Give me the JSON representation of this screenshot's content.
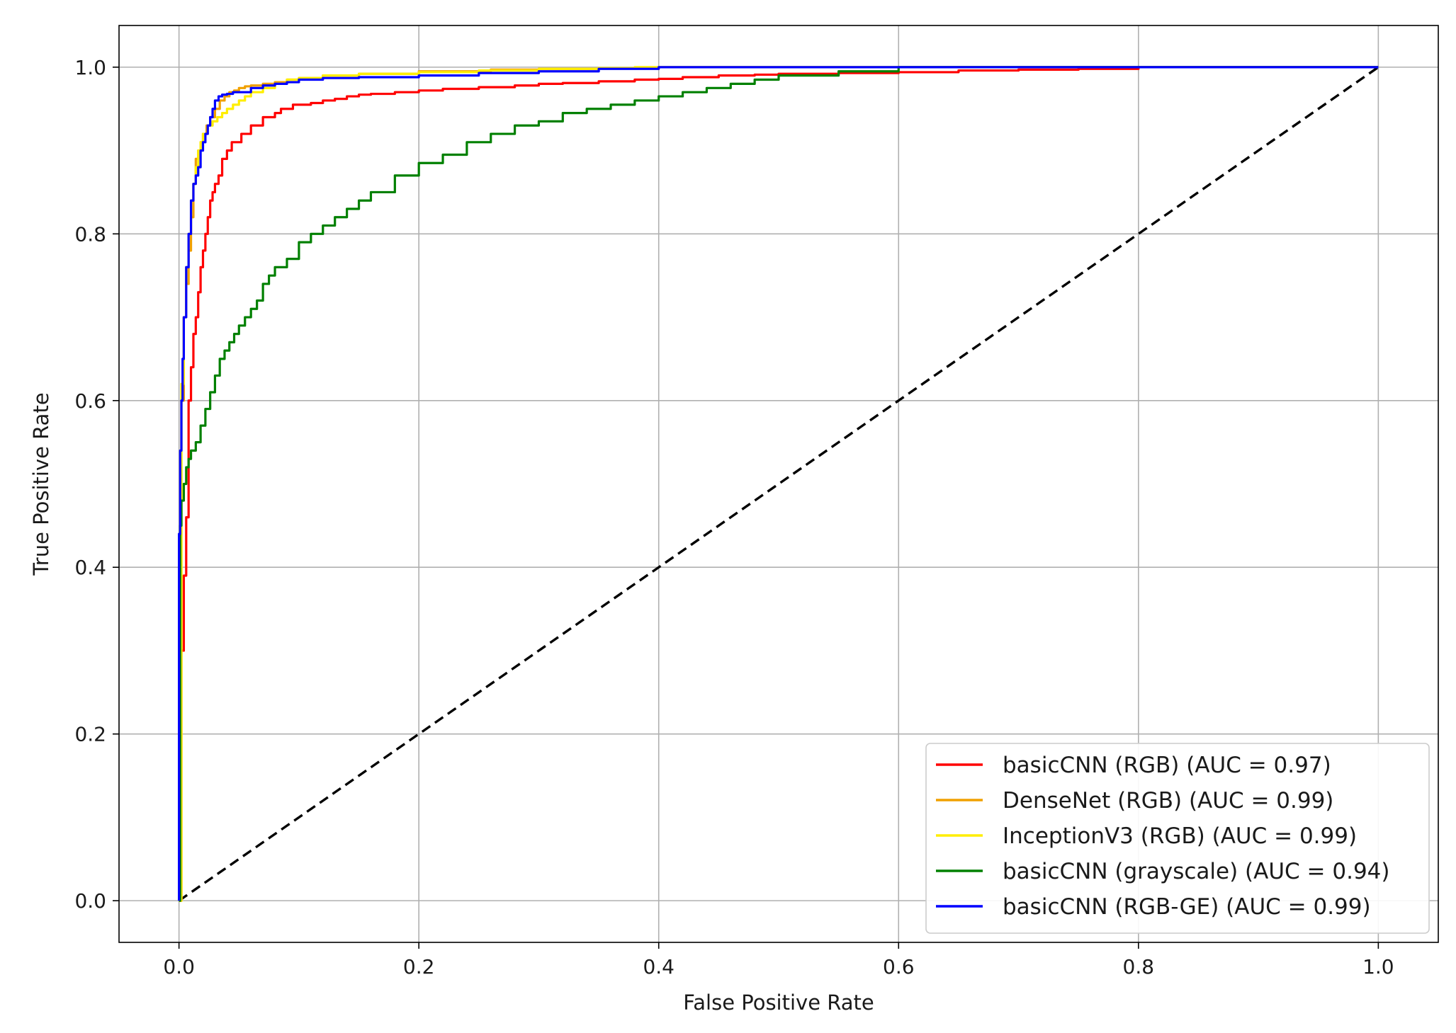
{
  "chart_data": {
    "type": "line",
    "title": "",
    "xlabel": "False Positive Rate",
    "ylabel": "True Positive Rate",
    "xlim": [
      -0.05,
      1.05
    ],
    "ylim": [
      -0.05,
      1.05
    ],
    "x_ticks": [
      0.0,
      0.2,
      0.4,
      0.6,
      0.8,
      1.0
    ],
    "y_ticks": [
      0.0,
      0.2,
      0.4,
      0.6,
      0.8,
      1.0
    ],
    "x_tick_labels": [
      "0.0",
      "0.2",
      "0.4",
      "0.6",
      "0.8",
      "1.0"
    ],
    "y_tick_labels": [
      "0.0",
      "0.2",
      "0.4",
      "0.6",
      "0.8",
      "1.0"
    ],
    "grid": true,
    "legend_position": "lower-right",
    "series": [
      {
        "name": "basicCNN (RGB) (AUC = 0.97)",
        "color": "#ff0000",
        "x": [
          0.0,
          0.002,
          0.002,
          0.004,
          0.004,
          0.006,
          0.006,
          0.008,
          0.008,
          0.01,
          0.012,
          0.014,
          0.016,
          0.018,
          0.02,
          0.022,
          0.024,
          0.026,
          0.028,
          0.03,
          0.033,
          0.036,
          0.04,
          0.044,
          0.048,
          0.052,
          0.056,
          0.06,
          0.065,
          0.07,
          0.075,
          0.08,
          0.085,
          0.09,
          0.095,
          0.1,
          0.11,
          0.12,
          0.13,
          0.14,
          0.15,
          0.16,
          0.18,
          0.2,
          0.22,
          0.25,
          0.28,
          0.3,
          0.32,
          0.35,
          0.38,
          0.4,
          0.42,
          0.45,
          0.48,
          0.5,
          0.55,
          0.6,
          0.65,
          0.7,
          0.75,
          0.8,
          0.9,
          1.0
        ],
        "y": [
          0.0,
          0.2,
          0.3,
          0.38,
          0.39,
          0.39,
          0.46,
          0.5,
          0.6,
          0.64,
          0.68,
          0.7,
          0.73,
          0.76,
          0.78,
          0.8,
          0.82,
          0.84,
          0.85,
          0.86,
          0.87,
          0.89,
          0.9,
          0.91,
          0.91,
          0.92,
          0.92,
          0.93,
          0.93,
          0.94,
          0.94,
          0.945,
          0.95,
          0.95,
          0.955,
          0.955,
          0.957,
          0.96,
          0.962,
          0.965,
          0.967,
          0.968,
          0.97,
          0.972,
          0.974,
          0.976,
          0.978,
          0.98,
          0.981,
          0.983,
          0.985,
          0.986,
          0.988,
          0.99,
          0.991,
          0.992,
          0.993,
          0.994,
          0.996,
          0.997,
          0.998,
          1.0,
          1.0,
          1.0
        ]
      },
      {
        "name": "DenseNet (RGB) (AUC = 0.99)",
        "color": "#f0a000",
        "x": [
          0.0,
          0.002,
          0.004,
          0.006,
          0.008,
          0.01,
          0.012,
          0.014,
          0.016,
          0.018,
          0.02,
          0.023,
          0.026,
          0.03,
          0.034,
          0.038,
          0.042,
          0.046,
          0.05,
          0.055,
          0.06,
          0.07,
          0.08,
          0.09,
          0.1,
          0.12,
          0.15,
          0.2,
          0.26,
          0.3,
          0.35,
          0.4,
          0.5,
          0.6,
          0.8,
          1.0
        ],
        "y": [
          0.0,
          0.6,
          0.7,
          0.74,
          0.78,
          0.82,
          0.86,
          0.89,
          0.9,
          0.91,
          0.92,
          0.93,
          0.94,
          0.95,
          0.96,
          0.965,
          0.97,
          0.972,
          0.975,
          0.977,
          0.978,
          0.98,
          0.982,
          0.985,
          0.987,
          0.99,
          0.992,
          0.995,
          0.997,
          0.998,
          0.999,
          1.0,
          1.0,
          1.0,
          1.0,
          1.0
        ]
      },
      {
        "name": "InceptionV3 (RGB) (AUC = 0.99)",
        "color": "#ffee00",
        "x": [
          0.0,
          0.002,
          0.004,
          0.006,
          0.008,
          0.01,
          0.012,
          0.014,
          0.016,
          0.018,
          0.02,
          0.024,
          0.028,
          0.032,
          0.036,
          0.04,
          0.045,
          0.05,
          0.055,
          0.06,
          0.07,
          0.08,
          0.09,
          0.1,
          0.12,
          0.15,
          0.2,
          0.25,
          0.3,
          0.35,
          0.38,
          0.4,
          0.5,
          0.6,
          0.8,
          1.0
        ],
        "y": [
          0.0,
          0.62,
          0.7,
          0.76,
          0.8,
          0.84,
          0.86,
          0.88,
          0.9,
          0.91,
          0.92,
          0.93,
          0.935,
          0.94,
          0.945,
          0.95,
          0.955,
          0.96,
          0.965,
          0.97,
          0.975,
          0.98,
          0.985,
          0.987,
          0.99,
          0.992,
          0.994,
          0.996,
          0.998,
          0.999,
          1.0,
          1.0,
          1.0,
          1.0,
          1.0,
          1.0
        ]
      },
      {
        "name": "basicCNN (grayscale) (AUC = 0.94)",
        "color": "#008000",
        "x": [
          0.0,
          0.001,
          0.002,
          0.004,
          0.006,
          0.008,
          0.01,
          0.014,
          0.018,
          0.022,
          0.026,
          0.03,
          0.034,
          0.038,
          0.042,
          0.046,
          0.05,
          0.055,
          0.06,
          0.065,
          0.07,
          0.075,
          0.08,
          0.09,
          0.1,
          0.11,
          0.12,
          0.13,
          0.14,
          0.15,
          0.16,
          0.18,
          0.2,
          0.22,
          0.24,
          0.26,
          0.28,
          0.3,
          0.32,
          0.34,
          0.36,
          0.38,
          0.4,
          0.42,
          0.44,
          0.46,
          0.48,
          0.5,
          0.55,
          0.6,
          0.7,
          0.8,
          0.9,
          1.0
        ],
        "y": [
          0.0,
          0.45,
          0.48,
          0.5,
          0.52,
          0.53,
          0.54,
          0.55,
          0.57,
          0.59,
          0.61,
          0.63,
          0.65,
          0.66,
          0.67,
          0.68,
          0.69,
          0.7,
          0.71,
          0.72,
          0.74,
          0.75,
          0.76,
          0.77,
          0.79,
          0.8,
          0.81,
          0.82,
          0.83,
          0.84,
          0.85,
          0.87,
          0.885,
          0.895,
          0.91,
          0.92,
          0.93,
          0.935,
          0.945,
          0.95,
          0.955,
          0.96,
          0.965,
          0.97,
          0.975,
          0.98,
          0.985,
          0.99,
          0.995,
          1.0,
          1.0,
          1.0,
          1.0,
          1.0
        ]
      },
      {
        "name": "basicCNN (RGB-GE) (AUC = 0.99)",
        "color": "#0000ff",
        "x": [
          0.0,
          0.0,
          0.001,
          0.002,
          0.003,
          0.004,
          0.006,
          0.008,
          0.01,
          0.012,
          0.014,
          0.016,
          0.018,
          0.02,
          0.022,
          0.024,
          0.026,
          0.028,
          0.03,
          0.033,
          0.036,
          0.04,
          0.045,
          0.05,
          0.06,
          0.07,
          0.08,
          0.09,
          0.1,
          0.12,
          0.15,
          0.2,
          0.25,
          0.3,
          0.35,
          0.4,
          0.5,
          0.6,
          0.8,
          1.0
        ],
        "y": [
          0.0,
          0.44,
          0.54,
          0.6,
          0.65,
          0.7,
          0.76,
          0.8,
          0.84,
          0.86,
          0.87,
          0.88,
          0.9,
          0.91,
          0.92,
          0.93,
          0.94,
          0.95,
          0.96,
          0.965,
          0.967,
          0.968,
          0.97,
          0.97,
          0.975,
          0.978,
          0.98,
          0.982,
          0.985,
          0.987,
          0.988,
          0.99,
          0.993,
          0.995,
          0.998,
          1.0,
          1.0,
          1.0,
          1.0,
          1.0
        ]
      }
    ],
    "reference_line": {
      "style": "dashed",
      "color": "#000000",
      "x": [
        0.0,
        1.0
      ],
      "y": [
        0.0,
        1.0
      ]
    }
  }
}
